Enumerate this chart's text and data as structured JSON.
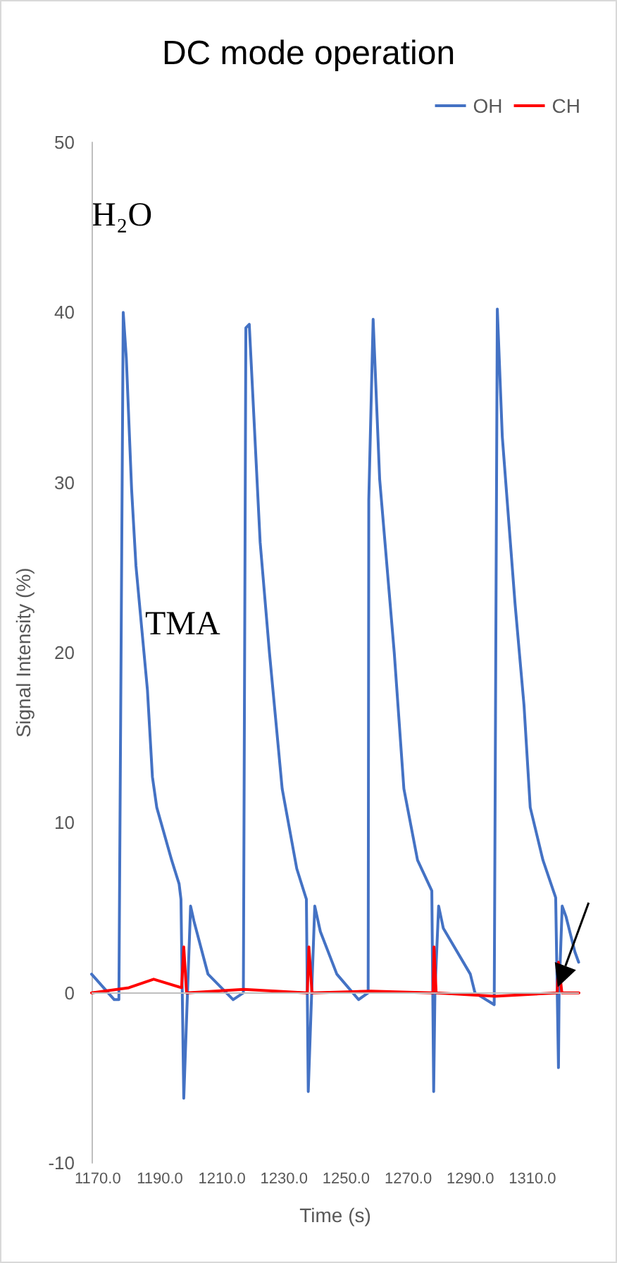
{
  "chart_data": {
    "type": "line",
    "title": "DC mode operation",
    "xlabel": "Time (s)",
    "ylabel": "Signal Intensity (%)",
    "x": [
      1168,
      1175.3,
      1176.8,
      1178.2,
      1179.2,
      1180.9,
      1182.3,
      1186,
      1187.6,
      1189,
      1193.8,
      1196.2,
      1196.8,
      1197.7,
      1198.9,
      1199.9,
      1201,
      1205.5,
      1213.6,
      1216.9,
      1217.7,
      1218.8,
      1222.3,
      1225.3,
      1229.4,
      1234.1,
      1237.2,
      1237.8,
      1238.9,
      1239.9,
      1241.7,
      1247,
      1254,
      1257.1,
      1257.3,
      1258.7,
      1260.8,
      1265.5,
      1268.6,
      1273,
      1277.6,
      1278.2,
      1278.6,
      1279.8,
      1281.3,
      1290,
      1291.5,
      1297.7,
      1298.7,
      1300.3,
      1304.4,
      1307.3,
      1309.3,
      1313.4,
      1317.5,
      1318.4,
      1318.6,
      1319.6,
      1320.8,
      1323.7,
      1324.9
    ],
    "series": [
      {
        "name": "OH",
        "color": "#4472c4",
        "values": [
          1.1,
          -0.4,
          -0.4,
          40,
          37.3,
          29.6,
          25.1,
          17.8,
          12.7,
          10.9,
          7.8,
          6.4,
          5.5,
          -6.2,
          0,
          5.1,
          4.2,
          1.1,
          -0.4,
          0,
          39.1,
          39.3,
          26.5,
          20,
          12,
          7.3,
          5.5,
          -5.8,
          0,
          5.1,
          3.6,
          1.1,
          -0.4,
          0,
          29,
          39.6,
          30.2,
          20,
          12,
          7.8,
          6,
          -5.8,
          0,
          5.1,
          3.8,
          1.1,
          0,
          -0.7,
          40.2,
          32.7,
          22.9,
          16.9,
          10.9,
          7.8,
          5.6,
          -4.4,
          0,
          5.1,
          4.5,
          2.4,
          1.8
        ]
      },
      {
        "name": "CH",
        "color": "#ff0000",
        "x": [
          1168,
          1180,
          1188,
          1197,
          1197.7,
          1198.6,
          1217,
          1237.5,
          1238,
          1239,
          1258,
          1278,
          1278.3,
          1279,
          1298,
          1318,
          1318.4,
          1319.5,
          1325
        ],
        "values": [
          0,
          0.3,
          0.8,
          0.3,
          2.7,
          0,
          0.2,
          0,
          2.7,
          0,
          0.1,
          0,
          2.7,
          0,
          -0.2,
          0,
          1.8,
          0,
          0
        ]
      }
    ],
    "xlim": [
      1168,
      1325
    ],
    "xticks": [
      {
        "value": 1170,
        "label": "1170.0"
      },
      {
        "value": 1190,
        "label": "1190.0"
      },
      {
        "value": 1210,
        "label": "1210.0"
      },
      {
        "value": 1230,
        "label": "1230.0"
      },
      {
        "value": 1250,
        "label": "1250.0"
      },
      {
        "value": 1270,
        "label": "1270.0"
      },
      {
        "value": 1290,
        "label": "1290.0"
      },
      {
        "value": 1310,
        "label": "1310.0"
      }
    ],
    "ylim": [
      -10,
      50
    ],
    "yticks": [
      -10,
      0,
      10,
      20,
      30,
      40,
      50
    ],
    "annotations": [
      "H₂O",
      "TMA"
    ],
    "ref_lines": [
      {
        "axis": "y",
        "value": 0,
        "color": "#bfbfbf"
      }
    ],
    "grid": false,
    "legend": "top right",
    "marker": "none",
    "line_style": "solid"
  }
}
